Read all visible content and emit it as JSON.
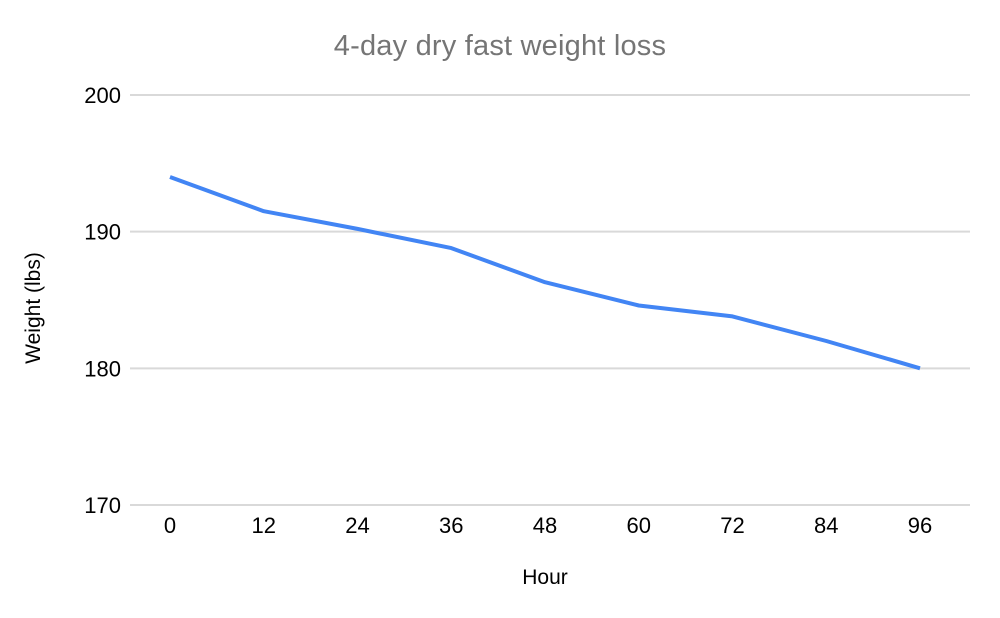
{
  "chart_data": {
    "type": "line",
    "title": "4-day dry fast weight loss",
    "xlabel": "Hour",
    "ylabel": "Weight (lbs)",
    "x": [
      0,
      12,
      24,
      36,
      48,
      60,
      72,
      84,
      96
    ],
    "series": [
      {
        "name": "Weight",
        "values": [
          194,
          191.5,
          190.2,
          188.8,
          186.3,
          184.6,
          183.8,
          182,
          180
        ]
      }
    ],
    "xticks": [
      "0",
      "12",
      "24",
      "36",
      "48",
      "60",
      "72",
      "84",
      "96"
    ],
    "yticks": [
      "200",
      "190",
      "180",
      "170"
    ],
    "xlim": [
      0,
      96
    ],
    "ylim": [
      170,
      200
    ],
    "grid": "horizontal-only",
    "legend": "none",
    "colors": {
      "line": "#4285f4",
      "title": "#757575",
      "grid": "#d9d9d9",
      "tick_label": "#000000",
      "background": "#ffffff"
    }
  }
}
